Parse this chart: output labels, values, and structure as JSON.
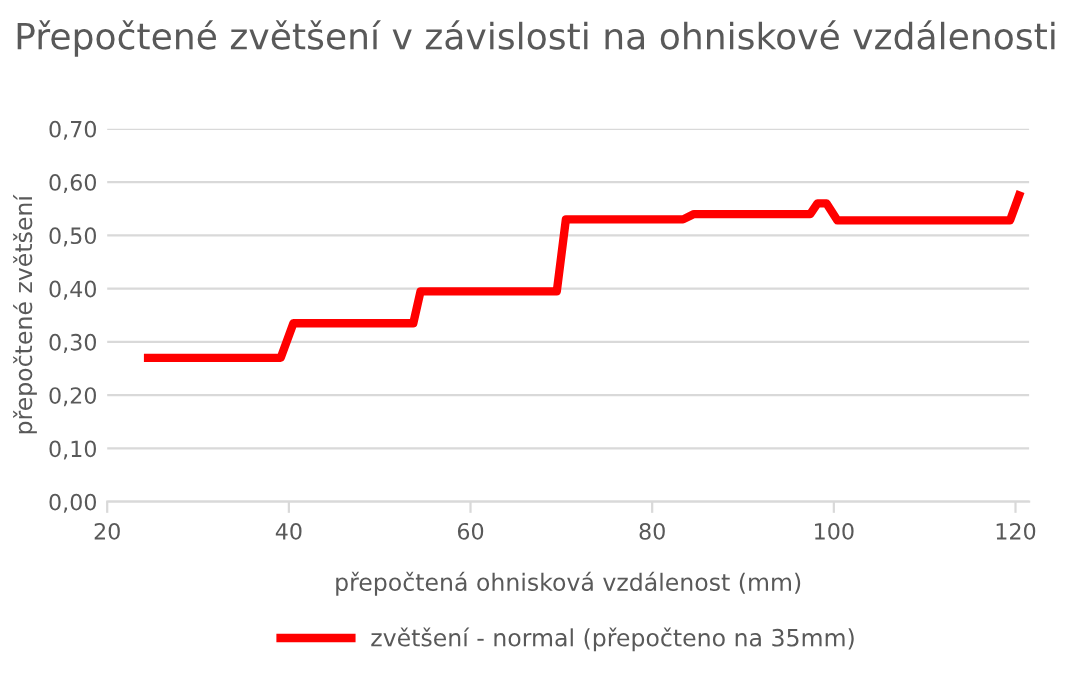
{
  "chart_data": {
    "type": "line",
    "title": "Přepočtené zvětšení v závislosti na ohniskové vzdálenosti",
    "xlabel": "přepočtená ohnisková vzdálenost (mm)",
    "ylabel": "přepočtené zvětšení",
    "series": [
      {
        "name": "zvětšení - normal (přepočteno na 35mm)",
        "color": "#ff0000",
        "x": [
          24.5,
          39.1,
          40.5,
          53.7,
          54.5,
          69.5,
          70.5,
          83.4,
          84.6,
          97.4,
          98.2,
          99.2,
          100.4,
          119.4,
          120.4
        ],
        "values": [
          0.27,
          0.27,
          0.335,
          0.335,
          0.395,
          0.395,
          0.53,
          0.53,
          0.54,
          0.54,
          0.56,
          0.56,
          0.528,
          0.528,
          0.575
        ]
      }
    ],
    "xlim": [
      20,
      121.5
    ],
    "xticks": [
      20,
      40,
      60,
      80,
      100,
      120
    ],
    "ylim": [
      0,
      0.7
    ],
    "yticks": [
      {
        "value": 0,
        "label": "0,00"
      },
      {
        "value": 0.1,
        "label": "0,10"
      },
      {
        "value": 0.2,
        "label": "0,20"
      },
      {
        "value": 0.3,
        "label": "0,30"
      },
      {
        "value": 0.4,
        "label": "0,40"
      },
      {
        "value": 0.5,
        "label": "0,50"
      },
      {
        "value": 0.6,
        "label": "0,60"
      },
      {
        "value": 0.7,
        "label": "0,70"
      }
    ],
    "grid": "y",
    "legend": "bottom",
    "marker": "none",
    "line_style": "solid"
  }
}
